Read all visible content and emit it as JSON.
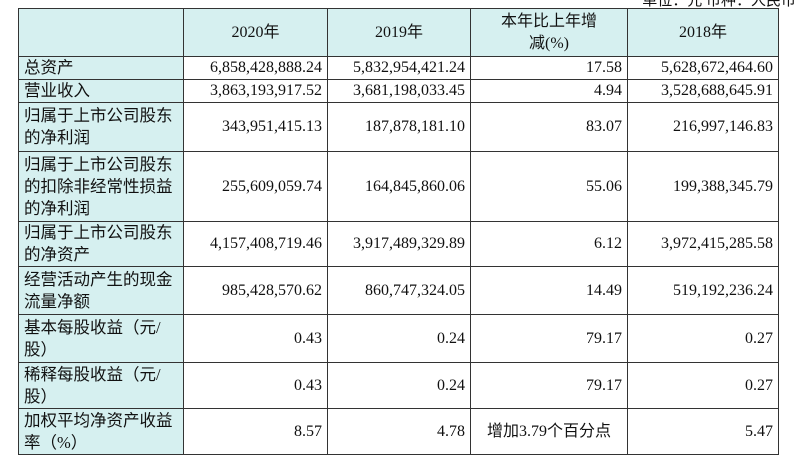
{
  "note": "单位：元 币种：人民币",
  "table": {
    "header": [
      "",
      "2020年",
      "2019年",
      "本年比上年增减(%)",
      "2018年"
    ],
    "rows": [
      [
        "总资产",
        "6,858,428,888.24",
        "5,832,954,421.24",
        "17.58",
        "5,628,672,464.60"
      ],
      [
        "营业收入",
        "3,863,193,917.52",
        "3,681,198,033.45",
        "4.94",
        "3,528,688,645.91"
      ],
      [
        "归属于上市公司股东的净利润",
        "343,951,415.13",
        "187,878,181.10",
        "83.07",
        "216,997,146.83"
      ],
      [
        "归属于上市公司股东的扣除非经常性损益的净利润",
        "255,609,059.74",
        "164,845,860.06",
        "55.06",
        "199,388,345.79"
      ],
      [
        "归属于上市公司股东的净资产",
        "4,157,408,719.46",
        "3,917,489,329.89",
        "6.12",
        "3,972,415,285.58"
      ],
      [
        "经营活动产生的现金流量净额",
        "985,428,570.62",
        "860,747,324.05",
        "14.49",
        "519,192,236.24"
      ],
      [
        "基本每股收益（元/股）",
        "0.43",
        "0.24",
        "79.17",
        "0.27"
      ],
      [
        "稀释每股收益（元/股）",
        "0.43",
        "0.24",
        "79.17",
        "0.27"
      ],
      [
        "加权平均净资产收益率（%）",
        "8.57",
        "4.78",
        "增加3.79个百分点",
        "5.47"
      ]
    ]
  }
}
